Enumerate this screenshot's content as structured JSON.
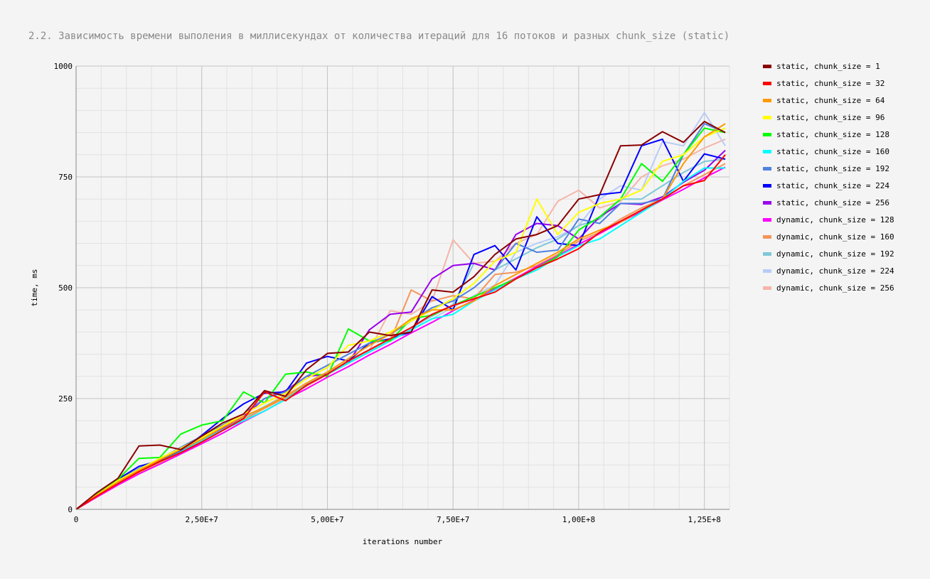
{
  "chart_data": {
    "type": "line",
    "title": "2.2. Зависимость времени выполения в миллисекундах от количества итераций для 16 потоков и разных chunk_size (static)",
    "xlabel": "iterations number",
    "ylabel": "time, ms",
    "xlim": [
      0,
      130000000
    ],
    "ylim": [
      0,
      1000
    ],
    "x_ticks": [
      0,
      25000000,
      50000000,
      75000000,
      100000000,
      125000000
    ],
    "x_tick_labels": [
      "0",
      "2,50E+7",
      "5,00E+7",
      "7,50E+7",
      "1,00E+8",
      "1,25E+8"
    ],
    "y_ticks": [
      0,
      250,
      500,
      750,
      1000
    ],
    "y_tick_labels": [
      "0",
      "250",
      "500",
      "750",
      "1000"
    ],
    "grid": true,
    "legend_position": "right",
    "x": [
      0,
      4166667,
      8333333,
      12500000,
      16666667,
      20833333,
      25000000,
      29166667,
      33333333,
      37500000,
      41666667,
      45833333,
      50000000,
      54166667,
      58333333,
      62500000,
      66666667,
      70833333,
      75000000,
      79166667,
      83333333,
      87500000,
      91666667,
      95833333,
      100000000,
      104166667,
      108333333,
      112500000,
      116666667,
      120833333,
      125000000,
      129166667
    ],
    "series": [
      {
        "name": "static, chunk_size = 1",
        "color": "#8b0000",
        "values": [
          0,
          38,
          70,
          143,
          145,
          135,
          165,
          195,
          215,
          268,
          255,
          315,
          352,
          355,
          400,
          392,
          400,
          495,
          490,
          525,
          575,
          610,
          620,
          640,
          700,
          710,
          820,
          822,
          852,
          828,
          875,
          850
        ]
      },
      {
        "name": "static, chunk_size = 32",
        "color": "#ff0000",
        "values": [
          0,
          30,
          58,
          85,
          108,
          128,
          152,
          178,
          205,
          265,
          245,
          280,
          305,
          335,
          360,
          385,
          410,
          440,
          460,
          475,
          490,
          520,
          545,
          565,
          588,
          625,
          650,
          675,
          700,
          730,
          742,
          800
        ]
      },
      {
        "name": "static, chunk_size = 64",
        "color": "#ff9900",
        "values": [
          0,
          32,
          62,
          88,
          112,
          135,
          158,
          185,
          210,
          230,
          255,
          285,
          310,
          340,
          370,
          395,
          430,
          450,
          450,
          470,
          505,
          530,
          555,
          580,
          610,
          630,
          648,
          675,
          700,
          780,
          840,
          870
        ]
      },
      {
        "name": "static, chunk_size = 96",
        "color": "#ffff00",
        "values": [
          0,
          33,
          65,
          90,
          115,
          138,
          162,
          188,
          215,
          240,
          262,
          295,
          320,
          370,
          380,
          400,
          425,
          450,
          475,
          510,
          560,
          580,
          700,
          620,
          670,
          690,
          700,
          720,
          785,
          800,
          840,
          860
        ]
      },
      {
        "name": "static, chunk_size = 128",
        "color": "#00ff00",
        "values": [
          0,
          35,
          68,
          115,
          117,
          170,
          190,
          200,
          265,
          240,
          305,
          310,
          300,
          407,
          380,
          380,
          430,
          438,
          460,
          480,
          500,
          520,
          545,
          570,
          630,
          660,
          700,
          780,
          740,
          800,
          860,
          850
        ]
      },
      {
        "name": "static, chunk_size = 160",
        "color": "#00ffff",
        "values": [
          0,
          31,
          60,
          85,
          108,
          130,
          155,
          180,
          200,
          222,
          248,
          280,
          305,
          330,
          355,
          380,
          405,
          430,
          440,
          470,
          495,
          520,
          540,
          570,
          595,
          610,
          640,
          670,
          700,
          740,
          770,
          770
        ]
      },
      {
        "name": "static, chunk_size = 192",
        "color": "#4f81e0",
        "values": [
          0,
          33,
          65,
          92,
          114,
          140,
          165,
          190,
          215,
          250,
          265,
          300,
          325,
          350,
          375,
          395,
          425,
          455,
          470,
          500,
          540,
          600,
          580,
          585,
          655,
          645,
          690,
          690,
          700,
          800,
          870,
          850
        ]
      },
      {
        "name": "static, chunk_size = 224",
        "color": "#0000ff",
        "values": [
          0,
          36,
          68,
          97,
          110,
          133,
          167,
          205,
          238,
          262,
          265,
          330,
          345,
          335,
          375,
          385,
          400,
          480,
          450,
          575,
          595,
          540,
          660,
          600,
          595,
          710,
          715,
          820,
          835,
          740,
          802,
          790
        ]
      },
      {
        "name": "static, chunk_size = 256",
        "color": "#9900ee",
        "values": [
          0,
          32,
          62,
          88,
          110,
          133,
          157,
          183,
          210,
          250,
          268,
          300,
          305,
          330,
          405,
          440,
          445,
          520,
          550,
          555,
          540,
          620,
          645,
          640,
          610,
          660,
          690,
          688,
          705,
          738,
          765,
          810
        ]
      },
      {
        "name": "dynamic, chunk_size = 128",
        "color": "#ff00ff",
        "values": [
          0,
          28,
          55,
          80,
          102,
          125,
          148,
          172,
          198,
          222,
          248,
          272,
          298,
          322,
          348,
          372,
          398,
          422,
          448,
          472,
          498,
          522,
          548,
          572,
          598,
          622,
          648,
          672,
          698,
          722,
          748,
          772
        ]
      },
      {
        "name": "dynamic, chunk_size = 160",
        "color": "#f4955a",
        "values": [
          0,
          30,
          58,
          82,
          105,
          128,
          152,
          178,
          202,
          228,
          252,
          278,
          305,
          330,
          355,
          380,
          495,
          470,
          482,
          475,
          530,
          535,
          550,
          575,
          605,
          625,
          655,
          680,
          700,
          730,
          755,
          780
        ]
      },
      {
        "name": "dynamic, chunk_size = 192",
        "color": "#7ec8d8",
        "values": [
          0,
          30,
          60,
          84,
          108,
          132,
          156,
          182,
          206,
          232,
          256,
          282,
          308,
          332,
          358,
          384,
          410,
          436,
          462,
          555,
          540,
          565,
          590,
          610,
          640,
          655,
          700,
          700,
          730,
          760,
          785,
          790
        ]
      },
      {
        "name": "dynamic, chunk_size = 224",
        "color": "#b8ccf8",
        "values": [
          0,
          29,
          57,
          82,
          106,
          130,
          154,
          180,
          204,
          230,
          256,
          280,
          306,
          330,
          356,
          380,
          406,
          430,
          456,
          482,
          506,
          580,
          600,
          615,
          640,
          700,
          730,
          720,
          830,
          820,
          895,
          820
        ]
      },
      {
        "name": "dynamic, chunk_size = 256",
        "color": "#f5b5a8",
        "values": [
          0,
          30,
          59,
          84,
          108,
          132,
          157,
          182,
          207,
          232,
          258,
          283,
          308,
          333,
          358,
          448,
          440,
          470,
          608,
          555,
          560,
          600,
          620,
          695,
          720,
          680,
          695,
          750,
          775,
          790,
          815,
          835
        ]
      }
    ]
  }
}
